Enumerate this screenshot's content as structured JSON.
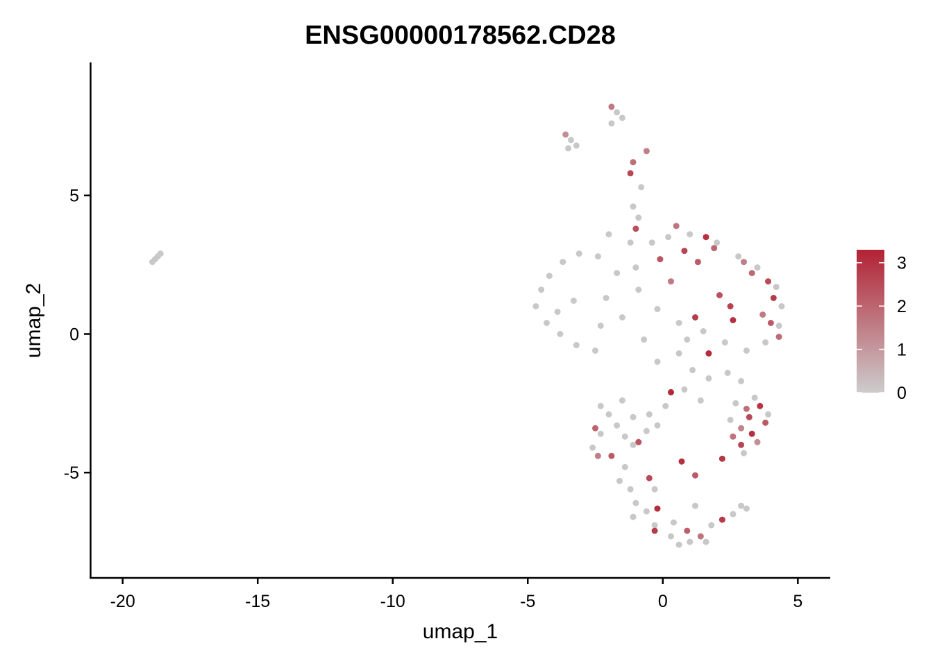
{
  "chart_data": {
    "type": "scatter",
    "title": "ENSG00000178562.CD28",
    "xlabel": "umap_1",
    "ylabel": "umap_2",
    "xlim": [
      -21.2,
      6.2
    ],
    "ylim": [
      -8.8,
      9.8
    ],
    "x_ticks": [
      -20,
      -15,
      -10,
      -5,
      0,
      5
    ],
    "x_tick_labels": [
      "-20",
      "-15",
      "-10",
      "-5",
      "0",
      "5"
    ],
    "y_ticks": [
      -5,
      0,
      5
    ],
    "y_tick_labels": [
      "-5",
      "0",
      "5"
    ],
    "grid": false,
    "legend_position": "right",
    "colorbar": {
      "min": 0,
      "max": 3.3,
      "ticks": [
        0,
        1,
        2,
        3
      ],
      "tick_labels": [
        "0",
        "1",
        "2",
        "3"
      ],
      "low_color": "#cccccc",
      "high_color": "#b22234"
    },
    "colors": {
      "not_expressed": "#c8c8c8",
      "high_expression": "#b22234"
    },
    "points": [
      {
        "x": -18.9,
        "y": 2.6,
        "v": 0
      },
      {
        "x": -18.8,
        "y": 2.7,
        "v": 0
      },
      {
        "x": -18.7,
        "y": 2.8,
        "v": 0
      },
      {
        "x": -18.6,
        "y": 2.9,
        "v": 0
      },
      {
        "x": -1.9,
        "y": 8.2,
        "v": 1.6
      },
      {
        "x": -1.7,
        "y": 8.0,
        "v": 0
      },
      {
        "x": -1.5,
        "y": 7.8,
        "v": 0
      },
      {
        "x": -1.9,
        "y": 7.6,
        "v": 0
      },
      {
        "x": -3.6,
        "y": 7.2,
        "v": 1.2
      },
      {
        "x": -3.4,
        "y": 7.0,
        "v": 0
      },
      {
        "x": -3.2,
        "y": 6.8,
        "v": 0
      },
      {
        "x": -3.5,
        "y": 6.7,
        "v": 0
      },
      {
        "x": -1.1,
        "y": 6.2,
        "v": 1.8
      },
      {
        "x": -0.6,
        "y": 6.6,
        "v": 1.5
      },
      {
        "x": -1.2,
        "y": 5.8,
        "v": 2.6
      },
      {
        "x": -0.8,
        "y": 5.3,
        "v": 0
      },
      {
        "x": -1.1,
        "y": 4.6,
        "v": 0
      },
      {
        "x": -0.9,
        "y": 4.2,
        "v": 0
      },
      {
        "x": -1.0,
        "y": 3.8,
        "v": 2.4
      },
      {
        "x": 0.5,
        "y": 3.9,
        "v": 1.7
      },
      {
        "x": 1.6,
        "y": 3.5,
        "v": 3.0
      },
      {
        "x": 1.9,
        "y": 3.1,
        "v": 2.0
      },
      {
        "x": 0.8,
        "y": 3.0,
        "v": 2.6
      },
      {
        "x": 1.3,
        "y": 2.6,
        "v": 2.2
      },
      {
        "x": 3.3,
        "y": 2.2,
        "v": 1.9
      },
      {
        "x": 3.9,
        "y": 1.9,
        "v": 2.5
      },
      {
        "x": 4.1,
        "y": 1.3,
        "v": 2.8
      },
      {
        "x": 2.5,
        "y": 1.0,
        "v": 2.7
      },
      {
        "x": 3.7,
        "y": 0.7,
        "v": 1.6
      },
      {
        "x": 2.6,
        "y": 0.5,
        "v": 3.0
      },
      {
        "x": 1.2,
        "y": 0.6,
        "v": 2.8
      },
      {
        "x": 4.0,
        "y": 0.4,
        "v": 2.2
      },
      {
        "x": 4.3,
        "y": -0.1,
        "v": 1.9
      },
      {
        "x": 1.7,
        "y": -0.7,
        "v": 3.1
      },
      {
        "x": 2.1,
        "y": 1.4,
        "v": 2.4
      },
      {
        "x": 3.0,
        "y": 2.6,
        "v": 1.5
      },
      {
        "x": -0.1,
        "y": 2.7,
        "v": 2.3
      },
      {
        "x": 0.3,
        "y": 1.9,
        "v": 1.6
      },
      {
        "x": -0.4,
        "y": 3.3,
        "v": 0
      },
      {
        "x": 0.2,
        "y": 3.5,
        "v": 0
      },
      {
        "x": 1.0,
        "y": 3.6,
        "v": 0
      },
      {
        "x": 2.0,
        "y": 3.3,
        "v": 0
      },
      {
        "x": 2.8,
        "y": 2.8,
        "v": 0
      },
      {
        "x": 3.5,
        "y": 2.4,
        "v": 0
      },
      {
        "x": 4.2,
        "y": 1.7,
        "v": 0
      },
      {
        "x": 4.4,
        "y": 1.0,
        "v": 0
      },
      {
        "x": 4.3,
        "y": 0.3,
        "v": 0
      },
      {
        "x": 3.8,
        "y": -0.3,
        "v": 0
      },
      {
        "x": 3.1,
        "y": -0.6,
        "v": 0
      },
      {
        "x": 2.3,
        "y": -0.3,
        "v": 0
      },
      {
        "x": 1.5,
        "y": 0.1,
        "v": 0
      },
      {
        "x": 0.6,
        "y": 0.4,
        "v": 0
      },
      {
        "x": -0.2,
        "y": 0.9,
        "v": 0
      },
      {
        "x": -0.9,
        "y": 1.6,
        "v": 0
      },
      {
        "x": -1.7,
        "y": 2.2,
        "v": 0
      },
      {
        "x": -2.4,
        "y": 2.8,
        "v": 0
      },
      {
        "x": -2.0,
        "y": 3.6,
        "v": 0
      },
      {
        "x": -1.2,
        "y": 3.3,
        "v": 0
      },
      {
        "x": -4.7,
        "y": 1.0,
        "v": 0
      },
      {
        "x": -4.5,
        "y": 1.6,
        "v": 0
      },
      {
        "x": -4.2,
        "y": 2.1,
        "v": 0
      },
      {
        "x": -3.7,
        "y": 2.6,
        "v": 0
      },
      {
        "x": -3.1,
        "y": 2.9,
        "v": 0
      },
      {
        "x": -4.3,
        "y": 0.4,
        "v": 0
      },
      {
        "x": -3.8,
        "y": 0.0,
        "v": 0
      },
      {
        "x": -3.2,
        "y": -0.4,
        "v": 0
      },
      {
        "x": -2.5,
        "y": -0.6,
        "v": 0
      },
      {
        "x": -2.3,
        "y": 0.3,
        "v": 0
      },
      {
        "x": -3.3,
        "y": 1.2,
        "v": 0
      },
      {
        "x": -1.5,
        "y": 0.6,
        "v": 0
      },
      {
        "x": -0.7,
        "y": -0.2,
        "v": 0
      },
      {
        "x": -0.2,
        "y": -1.0,
        "v": 0
      },
      {
        "x": 0.6,
        "y": -0.7,
        "v": 0
      },
      {
        "x": 1.1,
        "y": -1.3,
        "v": 0
      },
      {
        "x": 1.7,
        "y": -1.6,
        "v": 0
      },
      {
        "x": 2.4,
        "y": -1.4,
        "v": 0
      },
      {
        "x": -2.1,
        "y": 1.3,
        "v": 0
      },
      {
        "x": -1.0,
        "y": 2.4,
        "v": 0
      },
      {
        "x": 2.9,
        "y": -1.7,
        "v": 0
      },
      {
        "x": 3.4,
        "y": -2.3,
        "v": 0
      },
      {
        "x": 3.1,
        "y": -2.7,
        "v": 1.8
      },
      {
        "x": 3.6,
        "y": -2.6,
        "v": 2.9
      },
      {
        "x": 3.2,
        "y": -3.0,
        "v": 2.5
      },
      {
        "x": 3.8,
        "y": -3.2,
        "v": 2.2
      },
      {
        "x": 2.9,
        "y": -3.4,
        "v": 1.4
      },
      {
        "x": 3.3,
        "y": -3.6,
        "v": 3.0
      },
      {
        "x": 2.6,
        "y": -3.7,
        "v": 1.7
      },
      {
        "x": 3.5,
        "y": -3.9,
        "v": 1.2
      },
      {
        "x": 2.9,
        "y": -4.0,
        "v": 2.6
      },
      {
        "x": 3.9,
        "y": -2.9,
        "v": 0
      },
      {
        "x": 2.7,
        "y": -2.5,
        "v": 0
      },
      {
        "x": 2.5,
        "y": -3.1,
        "v": 0
      },
      {
        "x": 3.0,
        "y": -4.3,
        "v": 0
      },
      {
        "x": 2.2,
        "y": -4.5,
        "v": 2.9
      },
      {
        "x": 1.4,
        "y": -2.4,
        "v": 0
      },
      {
        "x": 0.8,
        "y": -2.0,
        "v": 0
      },
      {
        "x": 0.3,
        "y": -2.1,
        "v": 3.2
      },
      {
        "x": 0.1,
        "y": -2.6,
        "v": 0
      },
      {
        "x": -0.5,
        "y": -2.9,
        "v": 0
      },
      {
        "x": -1.1,
        "y": -3.0,
        "v": 0
      },
      {
        "x": -1.7,
        "y": -3.3,
        "v": 0
      },
      {
        "x": -2.3,
        "y": -3.6,
        "v": 0
      },
      {
        "x": -2.6,
        "y": -4.1,
        "v": 0
      },
      {
        "x": -2.4,
        "y": -4.4,
        "v": 1.5
      },
      {
        "x": -1.9,
        "y": -4.4,
        "v": 2.2
      },
      {
        "x": -1.1,
        "y": -4.0,
        "v": 0
      },
      {
        "x": -0.6,
        "y": -3.5,
        "v": 0
      },
      {
        "x": -0.2,
        "y": -3.3,
        "v": 0
      },
      {
        "x": -1.4,
        "y": -3.7,
        "v": 0
      },
      {
        "x": -2.0,
        "y": -2.9,
        "v": 0
      },
      {
        "x": -2.5,
        "y": -3.4,
        "v": 2.0
      },
      {
        "x": -0.9,
        "y": -3.9,
        "v": 2.3
      },
      {
        "x": -1.4,
        "y": -4.8,
        "v": 0
      },
      {
        "x": -1.6,
        "y": -5.3,
        "v": 0
      },
      {
        "x": -1.2,
        "y": -5.6,
        "v": 0
      },
      {
        "x": -0.5,
        "y": -5.2,
        "v": 2.5
      },
      {
        "x": -1.0,
        "y": -6.1,
        "v": 0
      },
      {
        "x": -0.6,
        "y": -6.4,
        "v": 0
      },
      {
        "x": -0.3,
        "y": -6.9,
        "v": 0
      },
      {
        "x": -0.2,
        "y": -6.3,
        "v": 3.1
      },
      {
        "x": -0.3,
        "y": -7.1,
        "v": 2.8
      },
      {
        "x": 0.4,
        "y": -6.8,
        "v": 0
      },
      {
        "x": 0.9,
        "y": -7.1,
        "v": 2.1
      },
      {
        "x": 0.6,
        "y": -7.6,
        "v": 0
      },
      {
        "x": 1.0,
        "y": -7.5,
        "v": 0
      },
      {
        "x": 1.4,
        "y": -7.3,
        "v": 1.7
      },
      {
        "x": 1.6,
        "y": -7.5,
        "v": 0
      },
      {
        "x": 0.3,
        "y": -7.3,
        "v": 0
      },
      {
        "x": 0.7,
        "y": -4.6,
        "v": 3.0
      },
      {
        "x": 1.2,
        "y": -6.2,
        "v": 0
      },
      {
        "x": 1.8,
        "y": -6.9,
        "v": 0
      },
      {
        "x": 2.2,
        "y": -6.7,
        "v": 2.8
      },
      {
        "x": 2.6,
        "y": -6.5,
        "v": 0
      },
      {
        "x": 2.9,
        "y": -6.2,
        "v": 0
      },
      {
        "x": 3.1,
        "y": -6.3,
        "v": 0
      },
      {
        "x": 1.2,
        "y": -5.1,
        "v": 2.2
      },
      {
        "x": -0.3,
        "y": -5.6,
        "v": 0
      },
      {
        "x": -1.1,
        "y": -6.6,
        "v": 0
      },
      {
        "x": -2.3,
        "y": -2.6,
        "v": 0
      },
      {
        "x": -1.5,
        "y": -2.4,
        "v": 0
      },
      {
        "x": 0.9,
        "y": -0.2,
        "v": 0
      },
      {
        "x": -3.9,
        "y": 0.8,
        "v": 0
      }
    ]
  }
}
